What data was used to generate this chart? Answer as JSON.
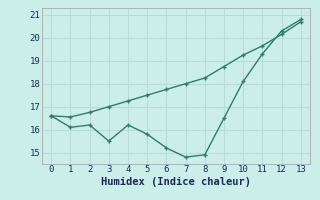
{
  "x": [
    0,
    1,
    2,
    3,
    4,
    5,
    6,
    7,
    8,
    9,
    10,
    11,
    12,
    13
  ],
  "line1_y": [
    16.6,
    16.55,
    16.75,
    17.0,
    17.25,
    17.5,
    17.75,
    18.0,
    18.25,
    18.75,
    19.25,
    19.65,
    20.15,
    20.7
  ],
  "line2_y": [
    16.6,
    16.1,
    16.2,
    15.5,
    16.2,
    15.8,
    15.2,
    14.8,
    14.9,
    16.5,
    18.1,
    19.3,
    20.3,
    20.8
  ],
  "line_color": "#2e7d6e",
  "bg_color": "#cceee8",
  "grid_color": "#b8ddd8",
  "xlabel": "Humidex (Indice chaleur)",
  "ylim": [
    14.5,
    21.3
  ],
  "yticks": [
    15,
    16,
    17,
    18,
    19,
    20,
    21
  ],
  "xticks": [
    0,
    1,
    2,
    3,
    4,
    5,
    6,
    7,
    8,
    9,
    10,
    11,
    12,
    13
  ],
  "markersize": 2.5,
  "linewidth": 1.0,
  "tick_fontsize": 6.5,
  "xlabel_fontsize": 7.5
}
